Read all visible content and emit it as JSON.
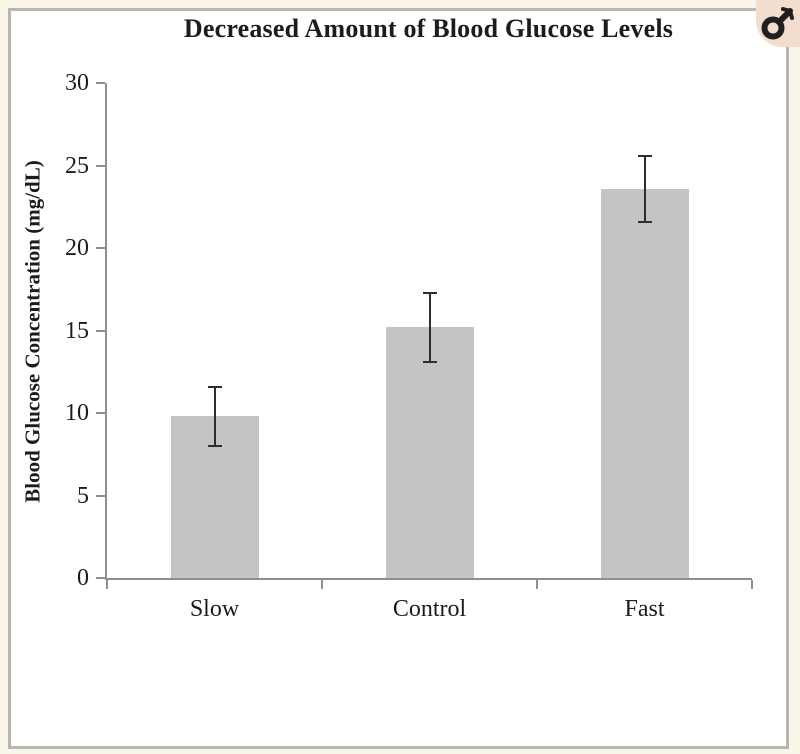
{
  "page": {
    "background_color": "#faf5e9",
    "card_border_color": "#b7b7b2",
    "corner_badge": {
      "icon": "male-symbol-icon",
      "background_color": "#f2ddce",
      "glyph_color": "#1f1f1f"
    }
  },
  "chart_data": {
    "type": "bar",
    "title": "Decreased Amount of Blood Glucose Levels",
    "xlabel": "",
    "ylabel": "Blood Glucose Concentration (mg/dL)",
    "categories": [
      "Slow",
      "Control",
      "Fast"
    ],
    "values": [
      9.8,
      15.2,
      23.6
    ],
    "error_bars": {
      "upper": [
        11.6,
        17.3,
        25.6
      ],
      "lower": [
        8.0,
        13.1,
        21.6
      ]
    },
    "ylim": [
      0,
      30
    ],
    "yticks": [
      0,
      5,
      10,
      15,
      20,
      25,
      30
    ],
    "grid": false,
    "legend": null,
    "bar_color": "#c4c4c4",
    "axis_color": "#8f8f8f",
    "error_bar_color": "#2e2e2e",
    "text_color": "#1c1c1c"
  }
}
